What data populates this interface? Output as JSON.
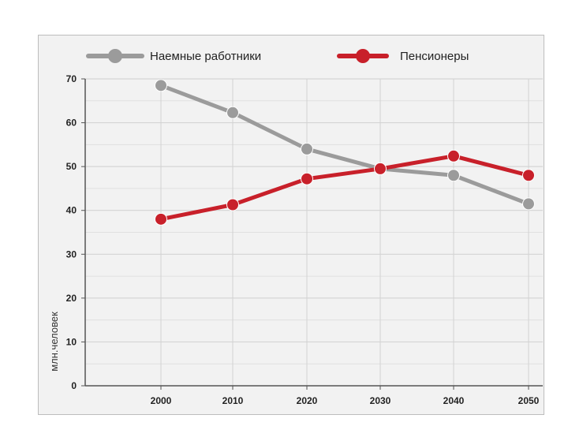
{
  "chart_data": {
    "type": "line",
    "title": "",
    "xlabel": "",
    "ylabel": "млн.человек",
    "x": [
      2000,
      2010,
      2020,
      2030,
      2040,
      2050
    ],
    "x_ticks": [
      "2000",
      "2010",
      "2020",
      "2030",
      "2040",
      "2050"
    ],
    "ylim": [
      0,
      70
    ],
    "y_ticks": [
      0,
      10,
      20,
      30,
      40,
      50,
      60,
      70
    ],
    "grid": true,
    "legend_position": "top",
    "series": [
      {
        "name": "Наемные работники",
        "color": "#9b9b9b",
        "values": [
          68.5,
          62.3,
          54.0,
          49.5,
          48.0,
          41.5
        ]
      },
      {
        "name": "Пенсионеры",
        "color": "#c8202a",
        "values": [
          38.0,
          41.3,
          47.2,
          49.5,
          52.4,
          48.0
        ]
      }
    ]
  }
}
